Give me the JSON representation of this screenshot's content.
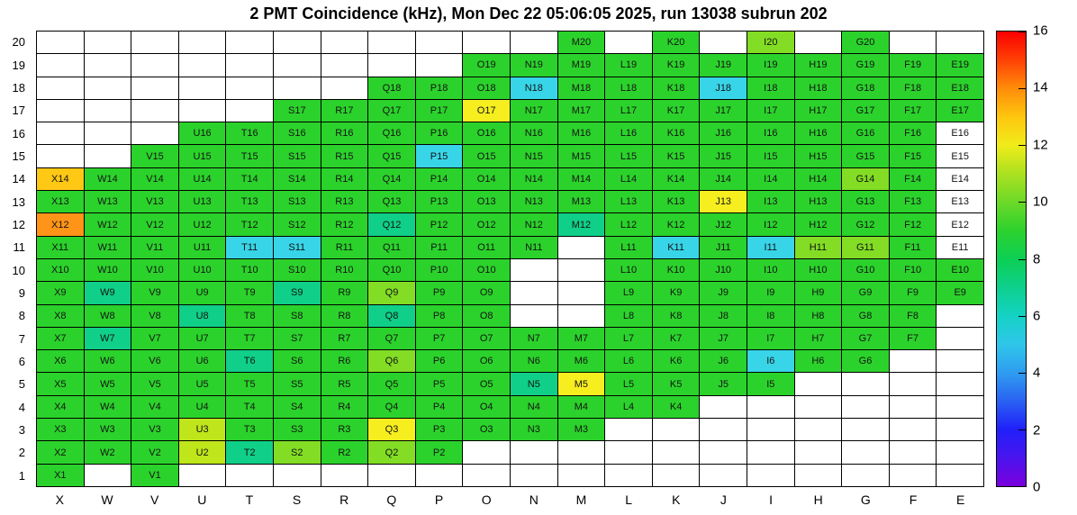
{
  "title": "2 PMT Coincidence (kHz), Mon Dec 22 05:06:05 2025, run 13038 subrun 202",
  "chart_data": {
    "type": "heatmap",
    "title": "2 PMT Coincidence (kHz), Mon Dec 22 05:06:05 2025, run 13038 subrun 202",
    "x_categories": [
      "X",
      "W",
      "V",
      "U",
      "T",
      "S",
      "R",
      "Q",
      "P",
      "O",
      "N",
      "M",
      "L",
      "K",
      "J",
      "I",
      "H",
      "G",
      "F",
      "E"
    ],
    "y_categories": [
      1,
      2,
      3,
      4,
      5,
      6,
      7,
      8,
      9,
      10,
      11,
      12,
      13,
      14,
      15,
      16,
      17,
      18,
      19,
      20
    ],
    "colorbar": {
      "range": [
        0,
        16
      ],
      "tick_labels": [
        "16",
        "14",
        "12",
        "10",
        "8",
        "6",
        "4",
        "2",
        "0"
      ],
      "tick_values": [
        16,
        14,
        12,
        10,
        8,
        6,
        4,
        2,
        0
      ],
      "gradient_stops": [
        {
          "v": 0,
          "c": "#7a00dd"
        },
        {
          "v": 1,
          "c": "#4a14ee"
        },
        {
          "v": 2,
          "c": "#2020fa"
        },
        {
          "v": 3,
          "c": "#2a62f2"
        },
        {
          "v": 4,
          "c": "#2f9df0"
        },
        {
          "v": 5,
          "c": "#2fc6ea"
        },
        {
          "v": 6,
          "c": "#14d2c4"
        },
        {
          "v": 7,
          "c": "#0ed08d"
        },
        {
          "v": 8,
          "c": "#0ccf54"
        },
        {
          "v": 9,
          "c": "#2dd22d"
        },
        {
          "v": 10,
          "c": "#6cd928"
        },
        {
          "v": 11,
          "c": "#abe120"
        },
        {
          "v": 12,
          "c": "#f0ec1a"
        },
        {
          "v": 13,
          "c": "#ffc60e"
        },
        {
          "v": 14,
          "c": "#ff8c0a"
        },
        {
          "v": 15,
          "c": "#ff4105"
        },
        {
          "v": 16,
          "c": "#fb0000"
        }
      ]
    },
    "palette": {
      "w": "#ffffff",
      "c": "#38d5e8",
      "t": "#10cf89",
      "g": "#2bd22b",
      "lg": "#82dd24",
      "yg": "#bfe51b",
      "y": "#f6ee1e",
      "am": "#ffc814",
      "o": "#ff9418"
    },
    "value_map": {
      "w": 0,
      "c": 5,
      "t": 7,
      "g": 9,
      "lg": 10.5,
      "yg": 11.5,
      "y": 12.5,
      "am": 13.5,
      "o": 14
    },
    "cells": [
      [
        "M20",
        "g"
      ],
      [
        "K20",
        "g"
      ],
      [
        "I20",
        "lg"
      ],
      [
        "G20",
        "g"
      ],
      [
        "O19",
        "g"
      ],
      [
        "N19",
        "g"
      ],
      [
        "M19",
        "g"
      ],
      [
        "L19",
        "g"
      ],
      [
        "K19",
        "g"
      ],
      [
        "J19",
        "g"
      ],
      [
        "I19",
        "g"
      ],
      [
        "H19",
        "g"
      ],
      [
        "G19",
        "g"
      ],
      [
        "F19",
        "g"
      ],
      [
        "E19",
        "g"
      ],
      [
        "Q18",
        "g"
      ],
      [
        "P18",
        "g"
      ],
      [
        "O18",
        "g"
      ],
      [
        "N18",
        "c"
      ],
      [
        "M18",
        "g"
      ],
      [
        "L18",
        "g"
      ],
      [
        "K18",
        "g"
      ],
      [
        "J18",
        "c"
      ],
      [
        "I18",
        "g"
      ],
      [
        "H18",
        "g"
      ],
      [
        "G18",
        "g"
      ],
      [
        "F18",
        "g"
      ],
      [
        "E18",
        "g"
      ],
      [
        "S17",
        "g"
      ],
      [
        "R17",
        "g"
      ],
      [
        "Q17",
        "g"
      ],
      [
        "P17",
        "g"
      ],
      [
        "O17",
        "y"
      ],
      [
        "N17",
        "g"
      ],
      [
        "M17",
        "g"
      ],
      [
        "L17",
        "g"
      ],
      [
        "K17",
        "g"
      ],
      [
        "J17",
        "g"
      ],
      [
        "I17",
        "g"
      ],
      [
        "H17",
        "g"
      ],
      [
        "G17",
        "g"
      ],
      [
        "F17",
        "g"
      ],
      [
        "E17",
        "g"
      ],
      [
        "U16",
        "g"
      ],
      [
        "T16",
        "g"
      ],
      [
        "S16",
        "g"
      ],
      [
        "R16",
        "g"
      ],
      [
        "Q16",
        "g"
      ],
      [
        "P16",
        "g"
      ],
      [
        "O16",
        "g"
      ],
      [
        "N16",
        "g"
      ],
      [
        "M16",
        "g"
      ],
      [
        "L16",
        "g"
      ],
      [
        "K16",
        "g"
      ],
      [
        "J16",
        "g"
      ],
      [
        "I16",
        "g"
      ],
      [
        "H16",
        "g"
      ],
      [
        "G16",
        "g"
      ],
      [
        "F16",
        "g"
      ],
      [
        "E16",
        "w"
      ],
      [
        "V15",
        "g"
      ],
      [
        "U15",
        "g"
      ],
      [
        "T15",
        "g"
      ],
      [
        "S15",
        "g"
      ],
      [
        "R15",
        "g"
      ],
      [
        "Q15",
        "g"
      ],
      [
        "P15",
        "c"
      ],
      [
        "O15",
        "g"
      ],
      [
        "N15",
        "g"
      ],
      [
        "M15",
        "g"
      ],
      [
        "L15",
        "g"
      ],
      [
        "K15",
        "g"
      ],
      [
        "J15",
        "g"
      ],
      [
        "I15",
        "g"
      ],
      [
        "H15",
        "g"
      ],
      [
        "G15",
        "g"
      ],
      [
        "F15",
        "g"
      ],
      [
        "E15",
        "w"
      ],
      [
        "X14",
        "am"
      ],
      [
        "W14",
        "g"
      ],
      [
        "V14",
        "g"
      ],
      [
        "U14",
        "g"
      ],
      [
        "T14",
        "g"
      ],
      [
        "S14",
        "g"
      ],
      [
        "R14",
        "g"
      ],
      [
        "Q14",
        "g"
      ],
      [
        "P14",
        "g"
      ],
      [
        "O14",
        "g"
      ],
      [
        "N14",
        "g"
      ],
      [
        "M14",
        "g"
      ],
      [
        "L14",
        "g"
      ],
      [
        "K14",
        "g"
      ],
      [
        "J14",
        "g"
      ],
      [
        "I14",
        "g"
      ],
      [
        "H14",
        "g"
      ],
      [
        "G14",
        "lg"
      ],
      [
        "F14",
        "g"
      ],
      [
        "E14",
        "w"
      ],
      [
        "X13",
        "g"
      ],
      [
        "W13",
        "g"
      ],
      [
        "V13",
        "g"
      ],
      [
        "U13",
        "g"
      ],
      [
        "T13",
        "g"
      ],
      [
        "S13",
        "g"
      ],
      [
        "R13",
        "g"
      ],
      [
        "Q13",
        "g"
      ],
      [
        "P13",
        "g"
      ],
      [
        "O13",
        "g"
      ],
      [
        "N13",
        "g"
      ],
      [
        "M13",
        "g"
      ],
      [
        "L13",
        "g"
      ],
      [
        "K13",
        "g"
      ],
      [
        "J13",
        "y"
      ],
      [
        "I13",
        "g"
      ],
      [
        "H13",
        "g"
      ],
      [
        "G13",
        "g"
      ],
      [
        "F13",
        "g"
      ],
      [
        "E13",
        "w"
      ],
      [
        "X12",
        "o"
      ],
      [
        "W12",
        "g"
      ],
      [
        "V12",
        "g"
      ],
      [
        "U12",
        "g"
      ],
      [
        "T12",
        "g"
      ],
      [
        "S12",
        "g"
      ],
      [
        "R12",
        "g"
      ],
      [
        "Q12",
        "t"
      ],
      [
        "P12",
        "g"
      ],
      [
        "O12",
        "g"
      ],
      [
        "N12",
        "g"
      ],
      [
        "M12",
        "t"
      ],
      [
        "L12",
        "g"
      ],
      [
        "K12",
        "g"
      ],
      [
        "J12",
        "g"
      ],
      [
        "I12",
        "g"
      ],
      [
        "H12",
        "g"
      ],
      [
        "G12",
        "g"
      ],
      [
        "F12",
        "g"
      ],
      [
        "E12",
        "w"
      ],
      [
        "X11",
        "g"
      ],
      [
        "W11",
        "g"
      ],
      [
        "V11",
        "g"
      ],
      [
        "U11",
        "g"
      ],
      [
        "T11",
        "c"
      ],
      [
        "S11",
        "c"
      ],
      [
        "R11",
        "g"
      ],
      [
        "Q11",
        "g"
      ],
      [
        "P11",
        "g"
      ],
      [
        "O11",
        "g"
      ],
      [
        "N11",
        "g"
      ],
      [
        "L11",
        "g"
      ],
      [
        "K11",
        "c"
      ],
      [
        "J11",
        "g"
      ],
      [
        "I11",
        "c"
      ],
      [
        "H11",
        "lg"
      ],
      [
        "G11",
        "lg"
      ],
      [
        "F11",
        "g"
      ],
      [
        "E11",
        "w"
      ],
      [
        "X10",
        "g"
      ],
      [
        "W10",
        "g"
      ],
      [
        "V10",
        "g"
      ],
      [
        "U10",
        "g"
      ],
      [
        "T10",
        "g"
      ],
      [
        "S10",
        "g"
      ],
      [
        "R10",
        "g"
      ],
      [
        "Q10",
        "g"
      ],
      [
        "P10",
        "g"
      ],
      [
        "O10",
        "g"
      ],
      [
        "L10",
        "g"
      ],
      [
        "K10",
        "g"
      ],
      [
        "J10",
        "g"
      ],
      [
        "I10",
        "g"
      ],
      [
        "H10",
        "g"
      ],
      [
        "G10",
        "g"
      ],
      [
        "F10",
        "g"
      ],
      [
        "E10",
        "g"
      ],
      [
        "X9",
        "g"
      ],
      [
        "W9",
        "t"
      ],
      [
        "V9",
        "g"
      ],
      [
        "U9",
        "g"
      ],
      [
        "T9",
        "g"
      ],
      [
        "S9",
        "t"
      ],
      [
        "R9",
        "g"
      ],
      [
        "Q9",
        "lg"
      ],
      [
        "P9",
        "g"
      ],
      [
        "O9",
        "g"
      ],
      [
        "L9",
        "g"
      ],
      [
        "K9",
        "g"
      ],
      [
        "J9",
        "g"
      ],
      [
        "I9",
        "g"
      ],
      [
        "H9",
        "g"
      ],
      [
        "G9",
        "g"
      ],
      [
        "F9",
        "g"
      ],
      [
        "E9",
        "g"
      ],
      [
        "X8",
        "g"
      ],
      [
        "W8",
        "g"
      ],
      [
        "V8",
        "g"
      ],
      [
        "U8",
        "t"
      ],
      [
        "T8",
        "g"
      ],
      [
        "S8",
        "g"
      ],
      [
        "R8",
        "g"
      ],
      [
        "Q8",
        "t"
      ],
      [
        "P8",
        "g"
      ],
      [
        "O8",
        "g"
      ],
      [
        "L8",
        "g"
      ],
      [
        "K8",
        "g"
      ],
      [
        "J8",
        "g"
      ],
      [
        "I8",
        "g"
      ],
      [
        "H8",
        "g"
      ],
      [
        "G8",
        "g"
      ],
      [
        "F8",
        "g"
      ],
      [
        "X7",
        "g"
      ],
      [
        "W7",
        "t"
      ],
      [
        "V7",
        "g"
      ],
      [
        "U7",
        "g"
      ],
      [
        "T7",
        "g"
      ],
      [
        "S7",
        "g"
      ],
      [
        "R7",
        "g"
      ],
      [
        "Q7",
        "g"
      ],
      [
        "P7",
        "g"
      ],
      [
        "O7",
        "g"
      ],
      [
        "N7",
        "g"
      ],
      [
        "M7",
        "g"
      ],
      [
        "L7",
        "g"
      ],
      [
        "K7",
        "g"
      ],
      [
        "J7",
        "g"
      ],
      [
        "I7",
        "g"
      ],
      [
        "H7",
        "g"
      ],
      [
        "G7",
        "g"
      ],
      [
        "F7",
        "g"
      ],
      [
        "X6",
        "g"
      ],
      [
        "W6",
        "g"
      ],
      [
        "V6",
        "g"
      ],
      [
        "U6",
        "g"
      ],
      [
        "T6",
        "t"
      ],
      [
        "S6",
        "g"
      ],
      [
        "R6",
        "g"
      ],
      [
        "Q6",
        "lg"
      ],
      [
        "P6",
        "g"
      ],
      [
        "O6",
        "g"
      ],
      [
        "N6",
        "g"
      ],
      [
        "M6",
        "g"
      ],
      [
        "L6",
        "g"
      ],
      [
        "K6",
        "g"
      ],
      [
        "J6",
        "g"
      ],
      [
        "I6",
        "c"
      ],
      [
        "H6",
        "g"
      ],
      [
        "G6",
        "g"
      ],
      [
        "X5",
        "g"
      ],
      [
        "W5",
        "g"
      ],
      [
        "V5",
        "g"
      ],
      [
        "U5",
        "g"
      ],
      [
        "T5",
        "g"
      ],
      [
        "S5",
        "g"
      ],
      [
        "R5",
        "g"
      ],
      [
        "Q5",
        "g"
      ],
      [
        "P5",
        "g"
      ],
      [
        "O5",
        "g"
      ],
      [
        "N5",
        "t"
      ],
      [
        "M5",
        "y"
      ],
      [
        "L5",
        "g"
      ],
      [
        "K5",
        "g"
      ],
      [
        "J5",
        "g"
      ],
      [
        "I5",
        "g"
      ],
      [
        "X4",
        "g"
      ],
      [
        "W4",
        "g"
      ],
      [
        "V4",
        "g"
      ],
      [
        "U4",
        "g"
      ],
      [
        "T4",
        "g"
      ],
      [
        "S4",
        "g"
      ],
      [
        "R4",
        "g"
      ],
      [
        "Q4",
        "g"
      ],
      [
        "P4",
        "g"
      ],
      [
        "O4",
        "g"
      ],
      [
        "N4",
        "g"
      ],
      [
        "M4",
        "g"
      ],
      [
        "L4",
        "g"
      ],
      [
        "K4",
        "g"
      ],
      [
        "X3",
        "g"
      ],
      [
        "W3",
        "g"
      ],
      [
        "V3",
        "g"
      ],
      [
        "U3",
        "yg"
      ],
      [
        "T3",
        "g"
      ],
      [
        "S3",
        "g"
      ],
      [
        "R3",
        "g"
      ],
      [
        "Q3",
        "y"
      ],
      [
        "P3",
        "g"
      ],
      [
        "O3",
        "g"
      ],
      [
        "N3",
        "g"
      ],
      [
        "M3",
        "g"
      ],
      [
        "X2",
        "g"
      ],
      [
        "W2",
        "g"
      ],
      [
        "V2",
        "g"
      ],
      [
        "U2",
        "yg"
      ],
      [
        "T2",
        "t"
      ],
      [
        "S2",
        "lg"
      ],
      [
        "R2",
        "g"
      ],
      [
        "Q2",
        "lg"
      ],
      [
        "P2",
        "g"
      ],
      [
        "X1",
        "g"
      ],
      [
        "V1",
        "g"
      ]
    ]
  }
}
